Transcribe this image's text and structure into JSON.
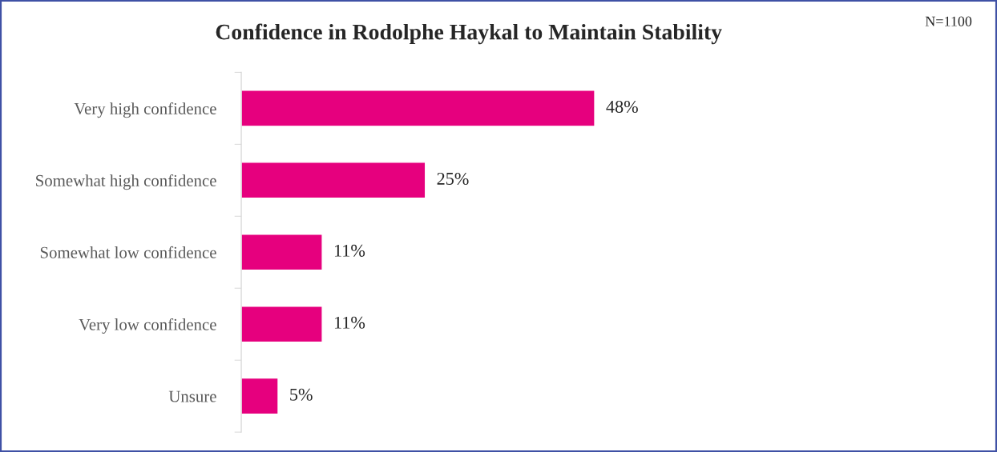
{
  "chart_data": {
    "type": "bar",
    "orientation": "horizontal",
    "title": "Confidence in Rodolphe Haykal to Maintain Stability",
    "categories": [
      "Very high confidence",
      "Somewhat high confidence",
      "Somewhat low confidence",
      "Very low confidence",
      "Unsure"
    ],
    "values": [
      48,
      25,
      11,
      11,
      5
    ],
    "color": "#e6007e",
    "value_labels": [
      "48%",
      "25%",
      "11%",
      "11%",
      "5%"
    ],
    "tick_labels": "y",
    "grid": false,
    "annotations": [
      "N=1100"
    ]
  }
}
